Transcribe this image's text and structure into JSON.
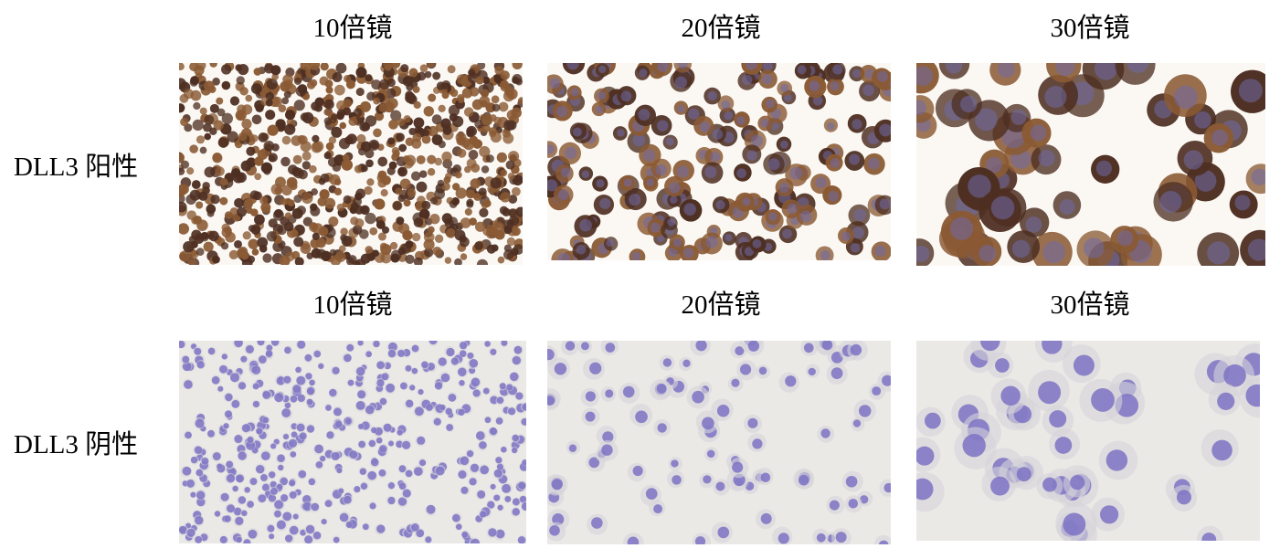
{
  "rows": [
    {
      "label": "DLL3 阳性",
      "stain": "positive",
      "colors": {
        "background": "#fbf8f3",
        "cell": "#8a5a34",
        "cell_dark": "#4e2f22",
        "nucleus": "#6f6aa8"
      },
      "headers": [
        "10倍镜",
        "20倍镜",
        "30倍镜"
      ]
    },
    {
      "label": "DLL3 阴性",
      "stain": "negative",
      "colors": {
        "background": "#eae9e6",
        "cell": "#d6d3d8",
        "cell_dark": "#6a5fb8",
        "nucleus": "#7d72c4"
      },
      "headers": [
        "10倍镜",
        "20倍镜",
        "30倍镜"
      ]
    }
  ]
}
